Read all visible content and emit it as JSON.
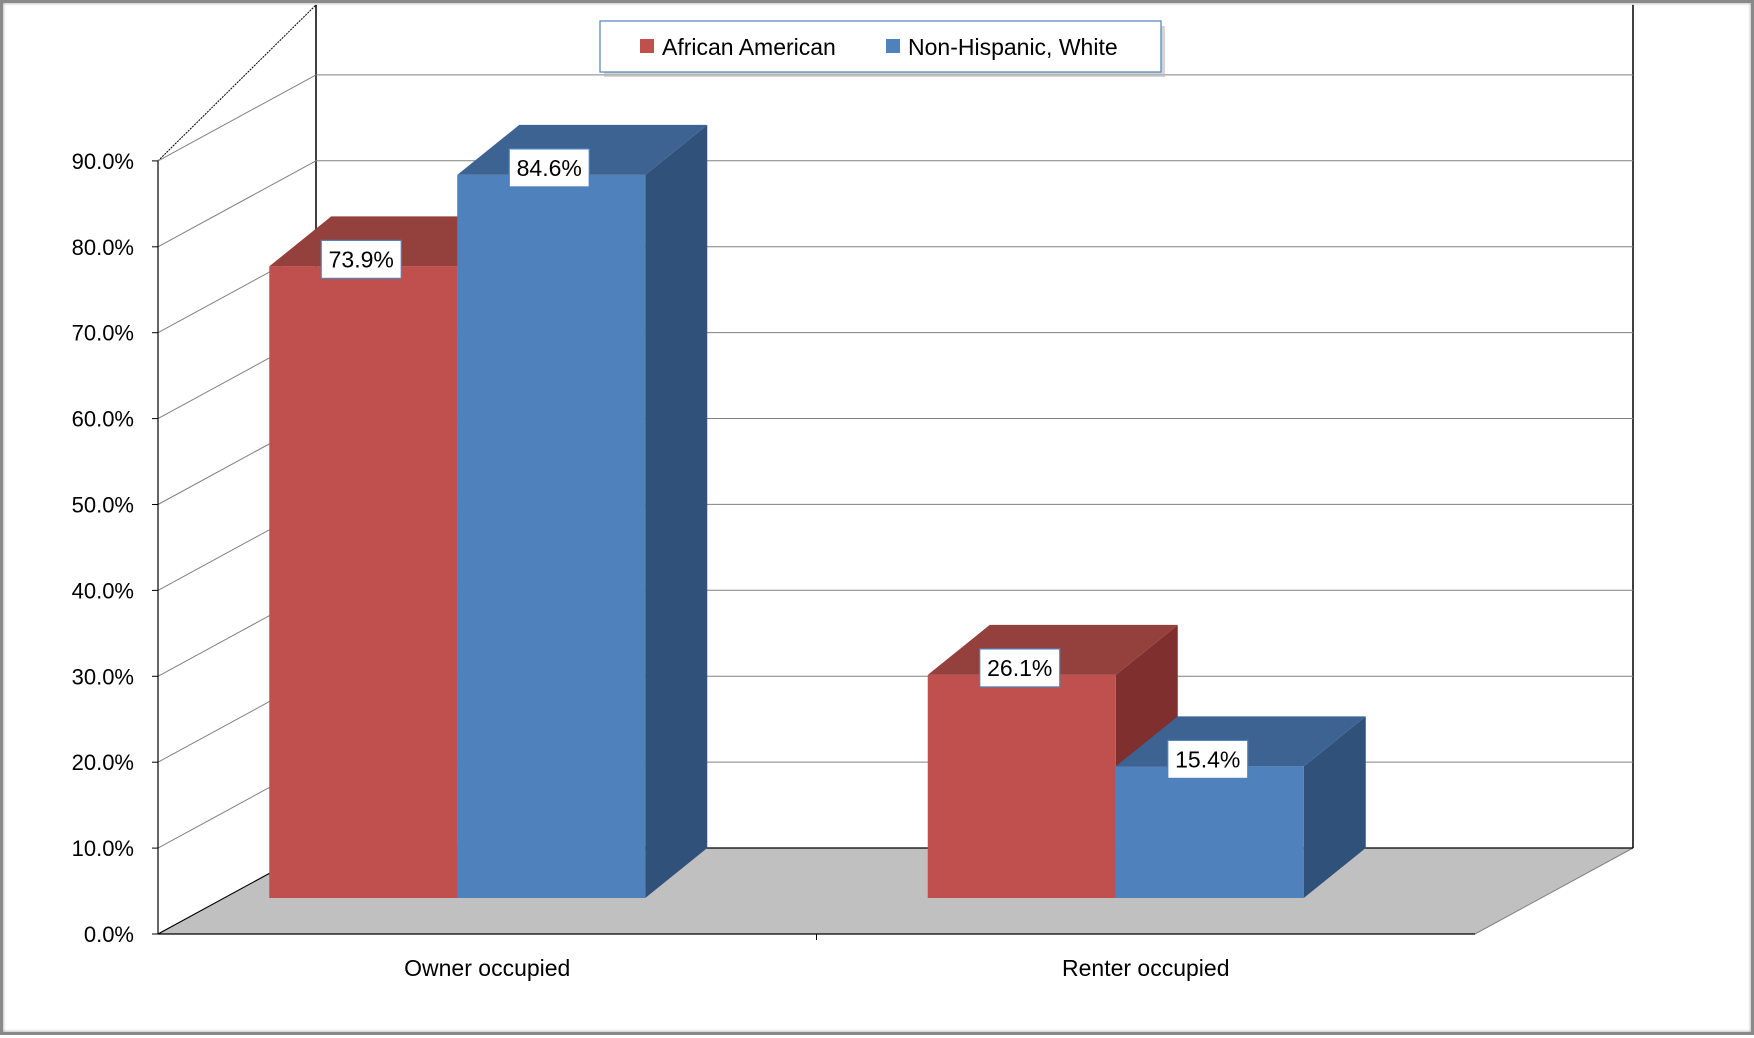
{
  "chart_data": {
    "type": "bar",
    "style": "3d-clustered-column",
    "categories": [
      "Owner occupied",
      "Renter occupied"
    ],
    "series": [
      {
        "name": "African American",
        "values": [
          73.9,
          26.1
        ],
        "color": "#C0504D",
        "top_color": "#94403D",
        "side_color": "#7F302E"
      },
      {
        "name": "Non-Hispanic, White",
        "values": [
          84.6,
          15.4
        ],
        "color": "#4F81BD",
        "top_color": "#3D6393",
        "side_color": "#30517A"
      }
    ],
    "data_labels": {
      "African American": [
        "73.9%",
        "26.1%"
      ],
      "Non-Hispanic, White": [
        "84.6%",
        "15.4%"
      ]
    },
    "y_ticks": [
      "0.0%",
      "10.0%",
      "20.0%",
      "30.0%",
      "40.0%",
      "50.0%",
      "60.0%",
      "70.0%",
      "80.0%",
      "90.0%"
    ],
    "ylim": [
      0,
      90
    ],
    "title": "",
    "xlabel": "",
    "ylabel": "",
    "grid": true,
    "legend": {
      "placement": "top-center"
    },
    "floor_color": "#C0C0C0"
  }
}
